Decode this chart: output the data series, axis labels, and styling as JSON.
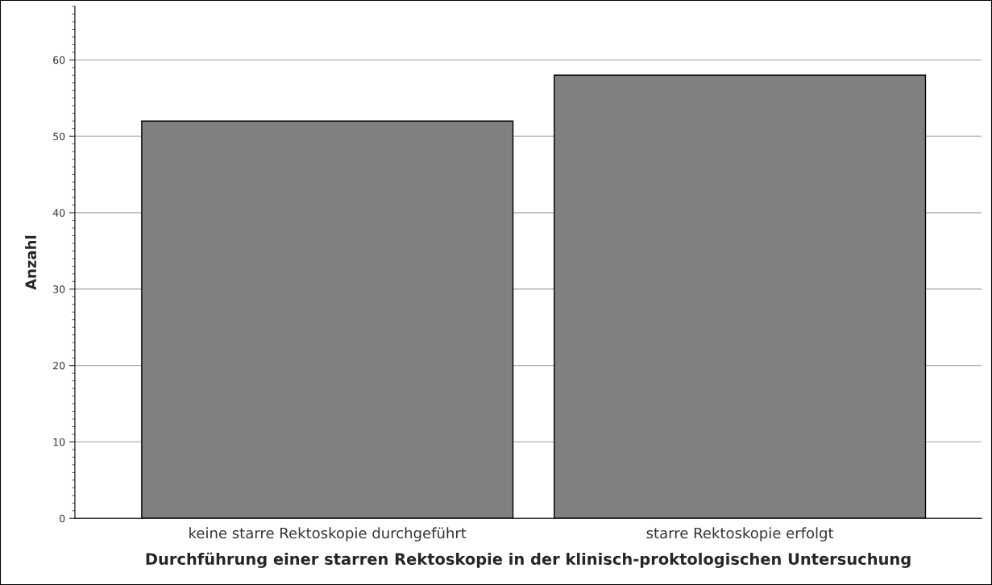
{
  "chart_data": {
    "type": "bar",
    "xlabel": "Durchführung einer starren Rektoskopie in der klinisch-proktologischen Untersuchung",
    "ylabel": "Anzahl",
    "categories": [
      "keine starre Rektoskopie durchgeführt",
      "starre Rektoskopie erfolgt"
    ],
    "values": [
      52,
      58
    ],
    "color": "#808080",
    "ylim": [
      0,
      67
    ],
    "yticks": [
      0,
      10,
      20,
      30,
      40,
      50,
      60
    ],
    "grid": "y",
    "legend": false
  }
}
